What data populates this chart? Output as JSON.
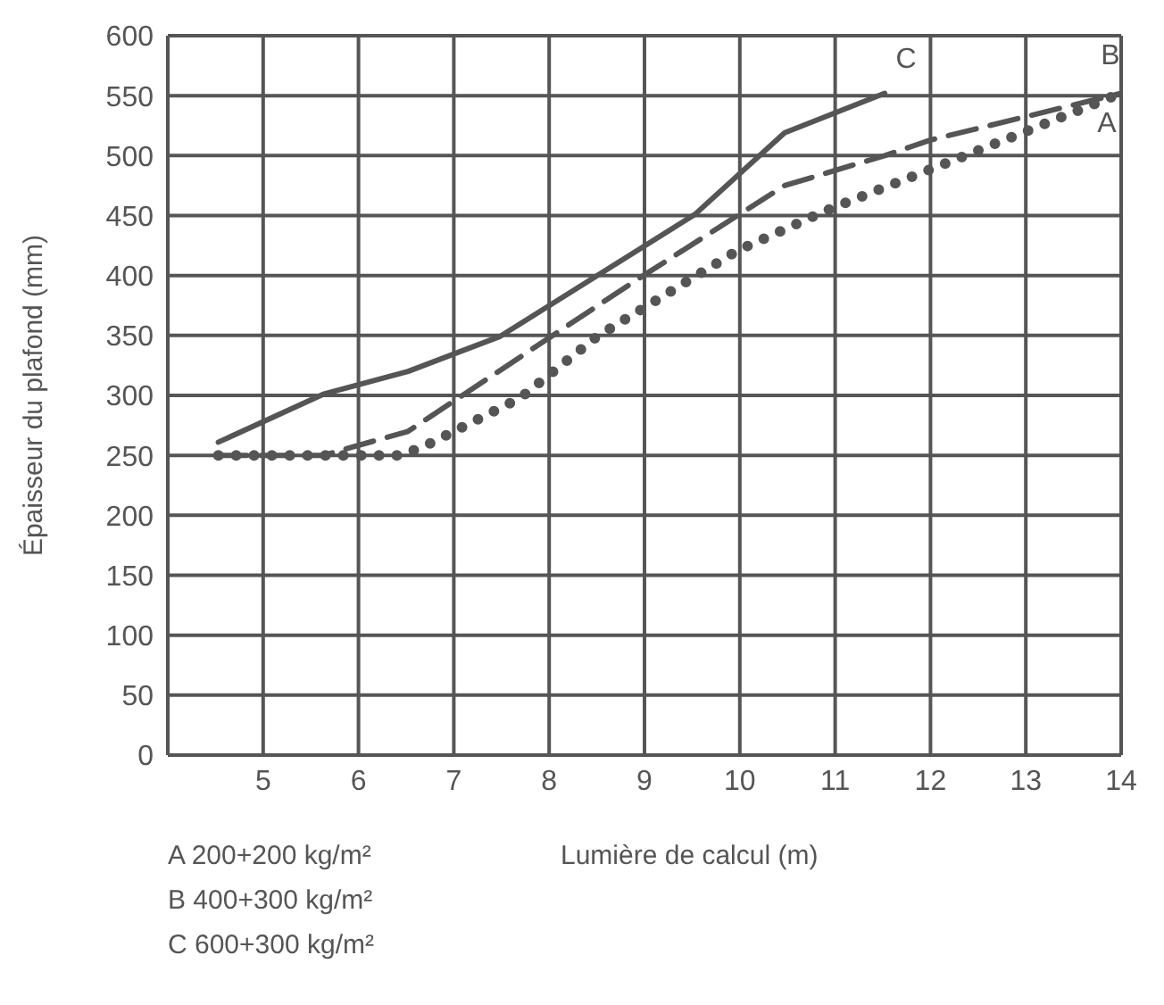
{
  "chart_data": {
    "type": "line",
    "xlabel": "Lumière de calcul (m)",
    "ylabel": "Épaisseur du plafond (mm)",
    "xlim": [
      4,
      14
    ],
    "xticks": [
      5,
      6,
      7,
      8,
      9,
      10,
      11,
      12,
      13,
      14
    ],
    "ylim": [
      0,
      600
    ],
    "yticks": [
      0,
      50,
      100,
      150,
      200,
      250,
      300,
      350,
      400,
      450,
      500,
      550,
      600
    ],
    "grid": true,
    "marker": "none",
    "series": [
      {
        "name": "C",
        "color": "#555555",
        "line_style": "solid",
        "x": [
          4.53,
          5.63,
          6.52,
          7.48,
          9.53,
          10.47,
          11.52
        ],
        "values": [
          261,
          301,
          320,
          349,
          451,
          519,
          552
        ]
      },
      {
        "name": "B",
        "color": "#555555",
        "line_style": "dashed",
        "x": [
          4.53,
          5.63,
          6.52,
          8.93,
          10.47,
          11.52,
          12.0,
          14
        ],
        "values": [
          250,
          250,
          270,
          397,
          475,
          500,
          513,
          552
        ]
      },
      {
        "name": "A",
        "color": "#555555",
        "line_style": "dotted",
        "x": [
          4.53,
          6.45,
          6.7,
          7.7,
          8.5,
          9.98,
          10.96,
          12.24,
          14
        ],
        "values": [
          250,
          250,
          258,
          298,
          349,
          421,
          456,
          496,
          552
        ]
      }
    ],
    "annotations": [
      "A 200+200 kg/m²",
      "B 400+300 kg/m²",
      "C 600+300 kg/m²"
    ]
  }
}
